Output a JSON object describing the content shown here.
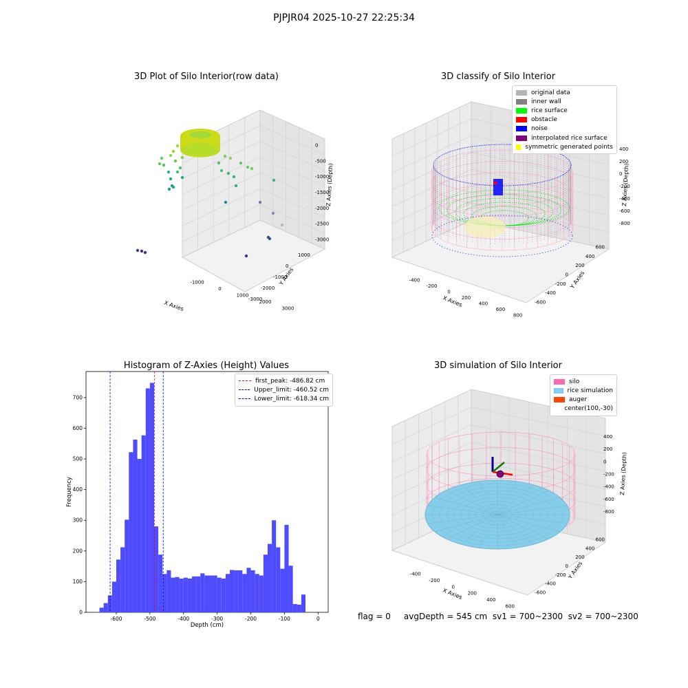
{
  "suptitle": "PJPJR04 2025-10-27 22:25:34",
  "footer": "flag = 0     avgDepth = 545 cm  sv1 = 700~2300  sv2 = 700~2300",
  "chart_data": [
    {
      "type": "scatter",
      "title": "3D Plot of Silo Interior(row data)",
      "xlabel": "X Axies",
      "ylabel": "Y Axies",
      "zlabel": "Z Axies (Depth)",
      "x_ticks": [
        "-1000",
        "0",
        "1000",
        "2000",
        "3000"
      ],
      "y_ticks": [
        "1000",
        "0",
        "-1000",
        "-2000",
        "-3000"
      ],
      "z_ticks": [
        "0",
        "-500",
        "-1000",
        "-1500",
        "-2000",
        "-2500",
        "-3000"
      ]
    },
    {
      "type": "scatter",
      "title": "3D classify of Silo Interior",
      "xlabel": "X Axies",
      "ylabel": "Y Axies",
      "zlabel": "Z Axies (Depth)",
      "x_ticks": [
        "-400",
        "-200",
        "0",
        "200",
        "400",
        "600",
        "800"
      ],
      "y_ticks": [
        "600",
        "400",
        "200",
        "0",
        "-200",
        "-400",
        "-600"
      ],
      "z_ticks": [
        "400",
        "200",
        "0",
        "-200",
        "-400",
        "-600",
        "-800"
      ],
      "legend": [
        {
          "label": "original data",
          "color": "#b3b3b3"
        },
        {
          "label": "inner wall",
          "color": "#808080"
        },
        {
          "label": "rice surface",
          "color": "#00ff00"
        },
        {
          "label": "obstacle",
          "color": "#ff0000"
        },
        {
          "label": "noise",
          "color": "#0000ff"
        },
        {
          "label": "interpolated rice surface",
          "color": "#800080"
        },
        {
          "label": "symmetric generated points",
          "color": "#ffff00"
        }
      ]
    },
    {
      "type": "bar",
      "title": "Histogram of Z-Axies (Height) Values",
      "xlabel": "Depth (cm)",
      "ylabel": "Frequency",
      "xlim": [
        -690,
        30
      ],
      "ylim": [
        0,
        785
      ],
      "x_ticks": [
        -600,
        -500,
        -400,
        -300,
        -200,
        -100,
        0
      ],
      "y_ticks": [
        0,
        100,
        200,
        300,
        400,
        500,
        600,
        700
      ],
      "bin_width": 12.5,
      "bin_starts": [
        -650,
        -637.5,
        -625,
        -612.5,
        -600,
        -587.5,
        -575,
        -562.5,
        -550,
        -537.5,
        -525,
        -512.5,
        -500,
        -487.5,
        -475,
        -462.5,
        -450,
        -437.5,
        -425,
        -412.5,
        -400,
        -387.5,
        -375,
        -362.5,
        -350,
        -337.5,
        -325,
        -312.5,
        -300,
        -287.5,
        -275,
        -262.5,
        -250,
        -237.5,
        -225,
        -212.5,
        -200,
        -187.5,
        -175,
        -162.5,
        -150,
        -137.5,
        -125,
        -112.5,
        -100,
        -87.5,
        -75,
        -62.5,
        -50,
        -37.5,
        -25,
        -12.5
      ],
      "values": [
        15,
        30,
        55,
        100,
        172,
        212,
        302,
        522,
        563,
        500,
        577,
        730,
        748,
        280,
        188,
        125,
        137,
        113,
        115,
        110,
        113,
        110,
        117,
        117,
        127,
        120,
        120,
        120,
        113,
        110,
        125,
        138,
        137,
        137,
        125,
        145,
        137,
        125,
        120,
        188,
        223,
        300,
        212,
        142,
        285,
        152,
        27,
        25,
        58,
        0,
        0,
        0
      ],
      "bar_color": "#4d4dff",
      "vlines": [
        {
          "x": -486.82,
          "color": "#ff0000",
          "label": "first_peak: -486.82 cm"
        },
        {
          "x": -460.52,
          "color": "#0000cc",
          "label": "Upper_limit: -460.52 cm"
        },
        {
          "x": -618.34,
          "color": "#0000cc",
          "label": "Lower_limit: -618.34 cm"
        }
      ],
      "legend_position": "upper right"
    },
    {
      "type": "scatter",
      "title": "3D simulation of Silo Interior",
      "xlabel": "X Axies",
      "ylabel": "Y Axies",
      "zlabel": "Z Axies (Depth)",
      "x_ticks": [
        "-400",
        "-200",
        "0",
        "200",
        "400",
        "600"
      ],
      "y_ticks": [
        "600",
        "400",
        "200",
        "0",
        "-200",
        "-400",
        "-600"
      ],
      "z_ticks": [
        "400",
        "200",
        "0",
        "-200",
        "-400",
        "-600",
        "-800"
      ],
      "legend": [
        {
          "label": "silo",
          "color": "#ff69b4"
        },
        {
          "label": "rice simulation",
          "color": "#87ceeb"
        },
        {
          "label": "auger",
          "color": "#ff4500"
        },
        {
          "label": "center(100,-30)",
          "color": ""
        }
      ]
    }
  ]
}
